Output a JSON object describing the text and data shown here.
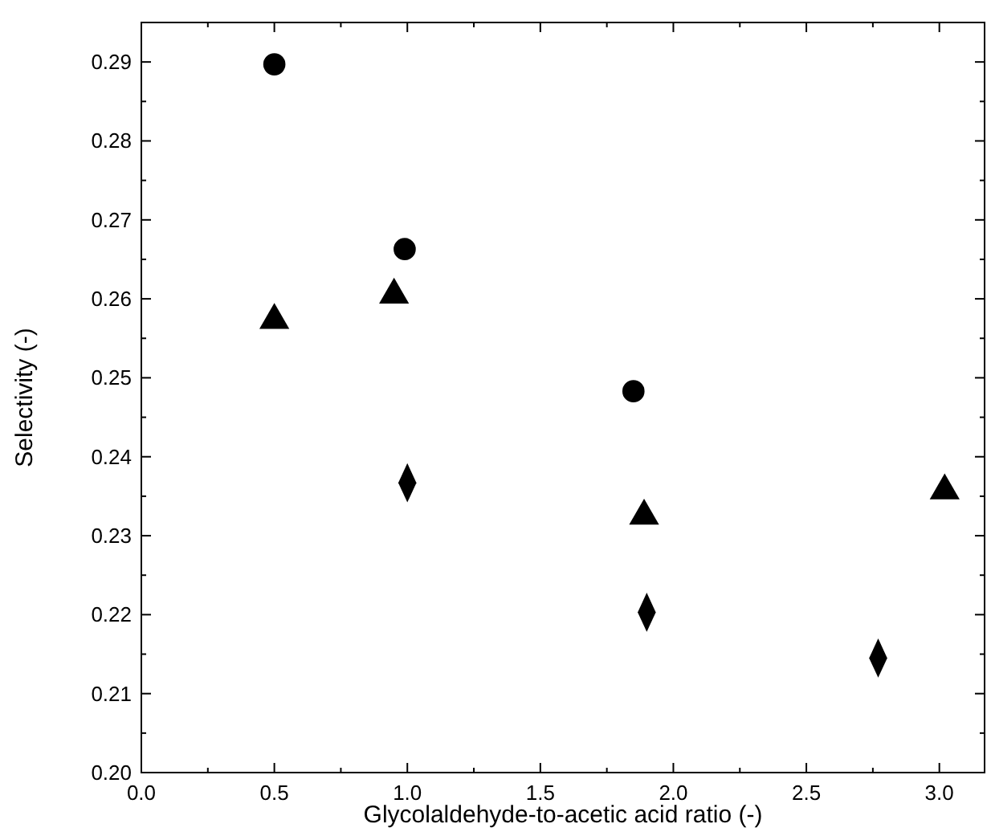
{
  "chart_data": {
    "type": "scatter",
    "xlabel": "Glycolaldehyde-to-acetic acid ratio (-)",
    "ylabel": "Selectivity (-)",
    "xlim": [
      0,
      3.17
    ],
    "ylim": [
      0.2,
      0.295
    ],
    "xticks": [
      {
        "value": 0,
        "label": "0.0"
      },
      {
        "value": 0.25,
        "label": null
      },
      0.5,
      {
        "value": 0.75,
        "label": null
      },
      {
        "value": 1,
        "label": "1.0"
      },
      {
        "value": 1.25,
        "label": null
      },
      1.5,
      {
        "value": 1.75,
        "label": null
      },
      {
        "value": 2,
        "label": "2.0"
      },
      {
        "value": 2.25,
        "label": null
      },
      2.5,
      {
        "value": 2.75,
        "label": null
      },
      {
        "value": 3,
        "label": "3.0"
      }
    ],
    "yticks": [
      {
        "value": 0.2,
        "label": "0.20"
      },
      {
        "value": 0.205,
        "label": null
      },
      0.21,
      {
        "value": 0.215,
        "label": null
      },
      0.22,
      {
        "value": 0.225,
        "label": null
      },
      0.23,
      {
        "value": 0.235,
        "label": null
      },
      0.24,
      {
        "value": 0.245,
        "label": null
      },
      0.25,
      {
        "value": 0.255,
        "label": null
      },
      0.26,
      {
        "value": 0.265,
        "label": null
      },
      0.27,
      {
        "value": 0.275,
        "label": null
      },
      0.28,
      {
        "value": 0.285,
        "label": null
      },
      0.29
    ],
    "grid": false,
    "series": [
      {
        "color": "#000000",
        "marker": "circle",
        "x": [
          0.5,
          0.99,
          1.85
        ],
        "values": [
          0.2897,
          0.2663,
          0.2483
        ]
      },
      {
        "color": "#000000",
        "marker": "triangle",
        "x": [
          0.5,
          0.95,
          1.89,
          3.02
        ],
        "values": [
          0.2573,
          0.2605,
          0.2325,
          0.2357
        ]
      },
      {
        "color": "#000000",
        "marker": "diamond",
        "x": [
          1.0,
          1.9,
          2.77
        ],
        "values": [
          0.2367,
          0.2203,
          0.2145
        ]
      }
    ]
  }
}
